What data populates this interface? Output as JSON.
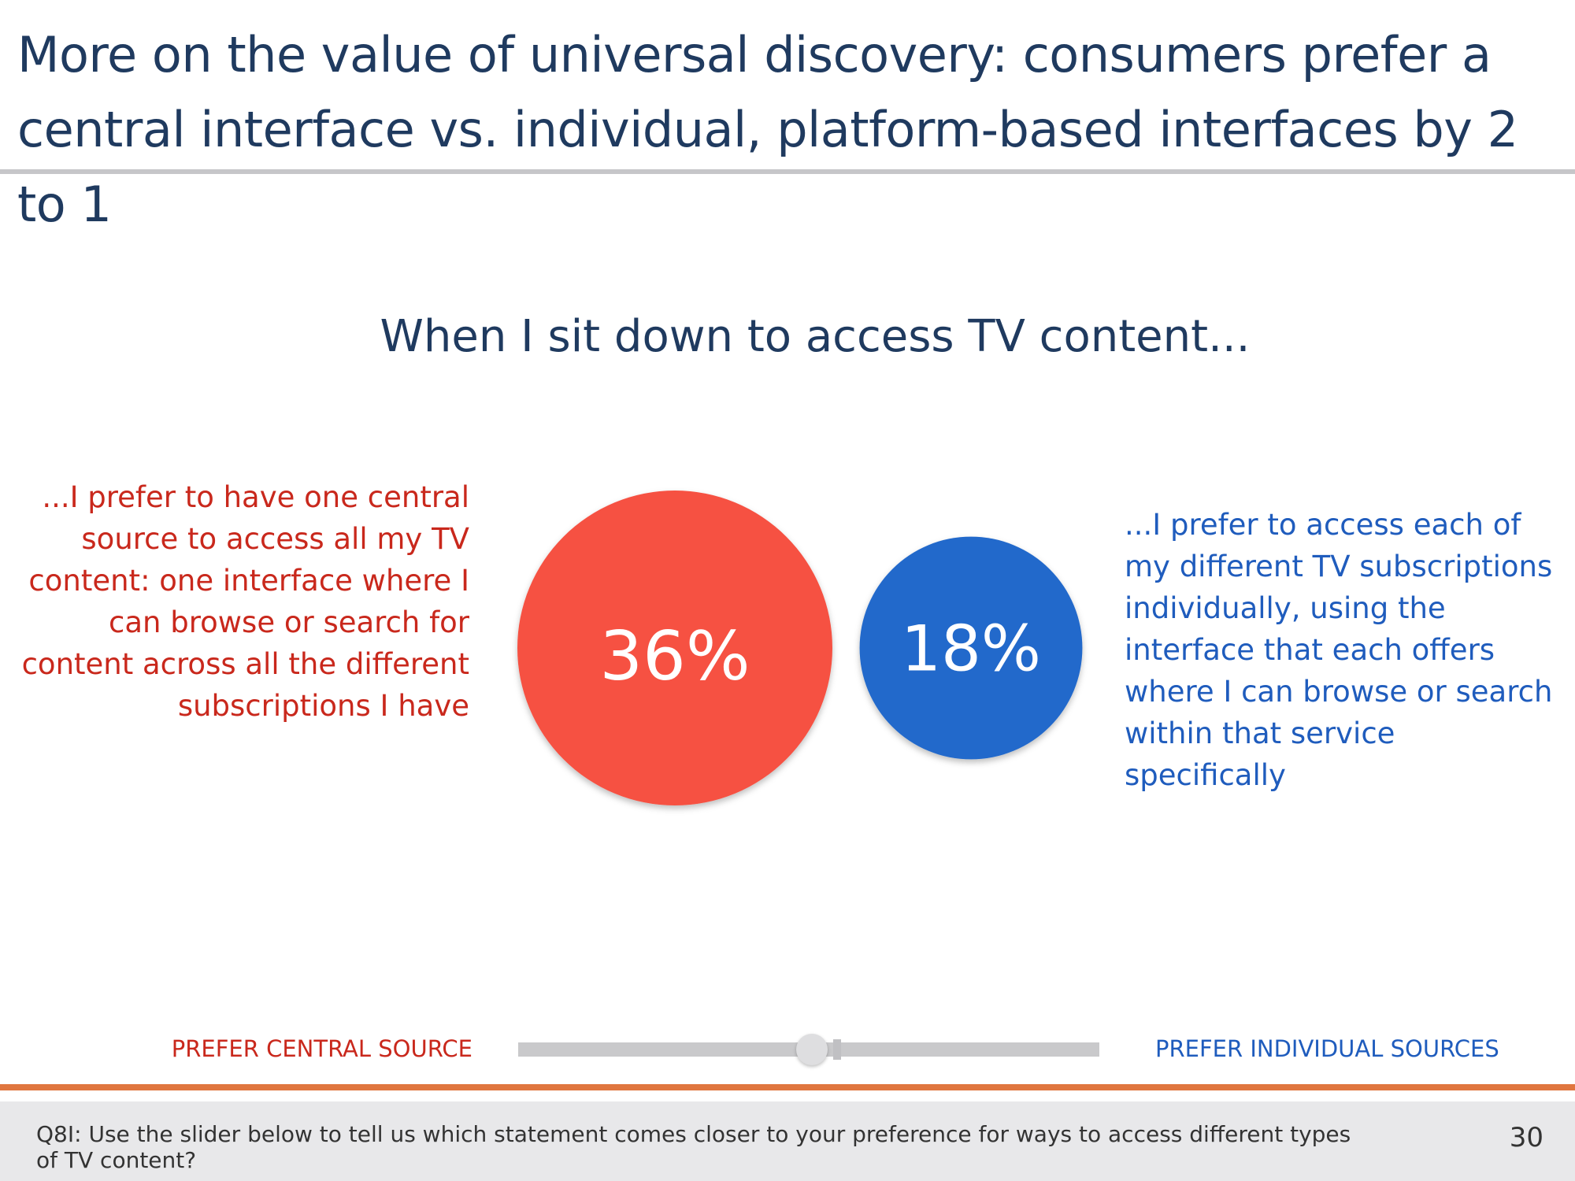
{
  "title": "More on the value of universal discovery: consumers prefer a central interface vs. individual, platform-based interfaces by 2 to 1",
  "subtitle": "When I sit down to access TV content...",
  "left_statement": "...I prefer to have one central source to access all my TV content: one interface where I can browse or search for content across all the different subscriptions I have",
  "right_statement": "...I prefer to access each of my different TV subscriptions individually, using the interface that each offers where I can browse or search within that service specifically",
  "slider": {
    "left_label": "PREFER CENTRAL SOURCE",
    "right_label": "PREFER INDIVIDUAL SOURCES"
  },
  "footer": {
    "question": "Q8I:  Use the slider below to tell us which statement comes closer to your preference for ways to access different types of TV content?",
    "page_number": "30"
  },
  "chart_data": {
    "type": "bubble",
    "categories": [
      "PREFER CENTRAL SOURCE",
      "PREFER INDIVIDUAL SOURCES"
    ],
    "values": [
      36,
      18
    ],
    "labels": [
      "36%",
      "18%"
    ],
    "unit": "%",
    "colors": [
      "#f65142",
      "#2369cb"
    ]
  }
}
